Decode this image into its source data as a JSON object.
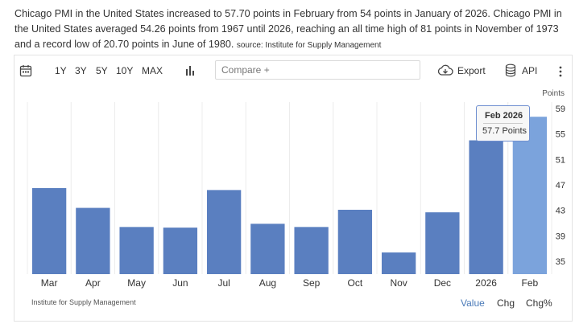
{
  "description": {
    "text": "Chicago PMI in the United States increased to 57.70 points in February from 54 points in January of 2026. Chicago PMI in the United States averaged 54.26 points from 1967 until 2026, reaching an all time high of 81 points in November of 1973 and a record low of 20.70 points in June of 1980.",
    "source": "source: Institute for Supply Management"
  },
  "toolbar": {
    "ranges": [
      "1Y",
      "3Y",
      "5Y",
      "10Y",
      "MAX"
    ],
    "compare_placeholder": "Compare +",
    "export_label": "Export",
    "api_label": "API"
  },
  "chart_data": {
    "type": "bar",
    "categories": [
      "Mar",
      "Apr",
      "May",
      "Jun",
      "Jul",
      "Aug",
      "Sep",
      "Oct",
      "Nov",
      "Dec",
      "2026",
      "Feb"
    ],
    "values": [
      46.5,
      43.4,
      40.4,
      40.3,
      46.2,
      40.9,
      40.4,
      43.1,
      36.4,
      42.7,
      54.0,
      57.7
    ],
    "ylabel": "Points",
    "ylim": [
      33,
      60
    ],
    "yticks": [
      35,
      39,
      43,
      47,
      51,
      55,
      59
    ],
    "grid": "vertical",
    "bar_color": "#5a7fc0",
    "highlight_color": "#7ba3dc",
    "highlight_index": 11,
    "tooltip": {
      "title": "Feb 2026",
      "value": "57.7 Points"
    }
  },
  "footer": {
    "source": "Institute for Supply Management",
    "modes": [
      "Value",
      "Chg",
      "Chg%"
    ],
    "active_mode_color": "#4a7ab8"
  }
}
